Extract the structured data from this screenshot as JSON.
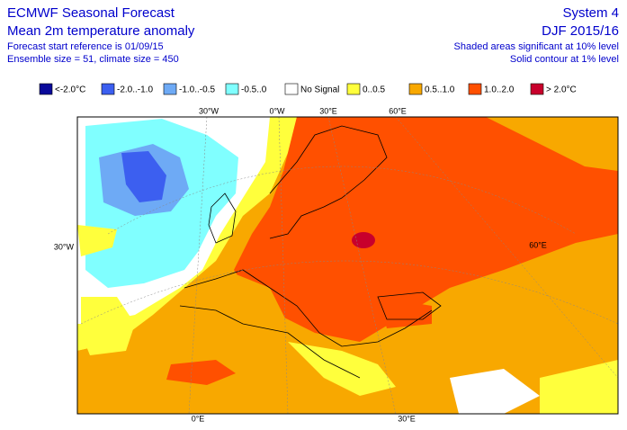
{
  "header": {
    "title": "ECMWF Seasonal Forecast",
    "subtitle": "Mean 2m temperature anomaly",
    "start_reference": "Forecast start reference is 01/09/15",
    "ensemble": "Ensemble size = 51, climate size = 450",
    "system": "System 4",
    "period": "DJF 2015/16",
    "note_shaded": "Shaded areas significant at 10% level",
    "note_contour": "Solid contour at 1% level"
  },
  "legend": [
    {
      "label": "<-2.0°C",
      "color": "#0a0a9a"
    },
    {
      "label": "-2.0..-1.0",
      "color": "#3c5ff0"
    },
    {
      "label": "-1.0..-0.5",
      "color": "#6eaaf5"
    },
    {
      "label": "-0.5..0",
      "color": "#80ffff"
    },
    {
      "label": "No Signal",
      "color": "#ffffff"
    },
    {
      "label": "0..0.5",
      "color": "#ffff3c"
    },
    {
      "label": "0.5..1.0",
      "color": "#f8a800"
    },
    {
      "label": "1.0..2.0",
      "color": "#ff5000"
    },
    {
      "label": "> 2.0°C",
      "color": "#c8002c"
    }
  ],
  "map": {
    "top_labels": [
      "30°W",
      "0°W",
      "30°E",
      "60°E"
    ],
    "left_label": "30°W",
    "right_label": "60°E",
    "bottom_labels": [
      "0°E",
      "30°E"
    ]
  }
}
